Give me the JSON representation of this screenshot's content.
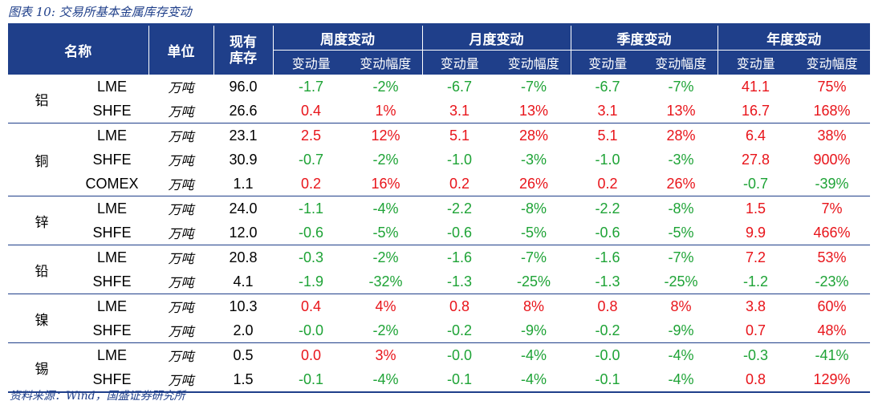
{
  "caption": "图表 10:  交易所基本金属库存变动",
  "source": "资料来源：Wind，国盛证券研究所",
  "colors": {
    "header_bg": "#1f3f8a",
    "positive": "#e8141a",
    "negative": "#1ea336"
  },
  "header": {
    "name": "名称",
    "unit": "单位",
    "stock_line1": "现有",
    "stock_line2": "库存",
    "groups": [
      "周度变动",
      "月度变动",
      "季度变动",
      "年度变动"
    ],
    "sub_change": "变动量",
    "sub_pct": "变动幅度"
  },
  "groups": [
    {
      "metal": "铝",
      "rows": [
        {
          "exchange": "LME",
          "unit": "万吨",
          "stock": "96.0",
          "cells": [
            "-1.7",
            "-2%",
            "-6.7",
            "-7%",
            "-6.7",
            "-7%",
            "41.1",
            "75%"
          ]
        },
        {
          "exchange": "SHFE",
          "unit": "万吨",
          "stock": "26.6",
          "cells": [
            "0.4",
            "1%",
            "3.1",
            "13%",
            "3.1",
            "13%",
            "16.7",
            "168%"
          ]
        }
      ]
    },
    {
      "metal": "铜",
      "rows": [
        {
          "exchange": "LME",
          "unit": "万吨",
          "stock": "23.1",
          "cells": [
            "2.5",
            "12%",
            "5.1",
            "28%",
            "5.1",
            "28%",
            "6.4",
            "38%"
          ]
        },
        {
          "exchange": "SHFE",
          "unit": "万吨",
          "stock": "30.9",
          "cells": [
            "-0.7",
            "-2%",
            "-1.0",
            "-3%",
            "-1.0",
            "-3%",
            "27.8",
            "900%"
          ]
        },
        {
          "exchange": "COMEX",
          "unit": "万吨",
          "stock": "1.1",
          "cells": [
            "0.2",
            "16%",
            "0.2",
            "26%",
            "0.2",
            "26%",
            "-0.7",
            "-39%"
          ]
        }
      ]
    },
    {
      "metal": "锌",
      "rows": [
        {
          "exchange": "LME",
          "unit": "万吨",
          "stock": "24.0",
          "cells": [
            "-1.1",
            "-4%",
            "-2.2",
            "-8%",
            "-2.2",
            "-8%",
            "1.5",
            "7%"
          ]
        },
        {
          "exchange": "SHFE",
          "unit": "万吨",
          "stock": "12.0",
          "cells": [
            "-0.6",
            "-5%",
            "-0.6",
            "-5%",
            "-0.6",
            "-5%",
            "9.9",
            "466%"
          ]
        }
      ]
    },
    {
      "metal": "铅",
      "rows": [
        {
          "exchange": "LME",
          "unit": "万吨",
          "stock": "20.8",
          "cells": [
            "-0.3",
            "-2%",
            "-1.6",
            "-7%",
            "-1.6",
            "-7%",
            "7.2",
            "53%"
          ]
        },
        {
          "exchange": "SHFE",
          "unit": "万吨",
          "stock": "4.1",
          "cells": [
            "-1.9",
            "-32%",
            "-1.3",
            "-25%",
            "-1.3",
            "-25%",
            "-1.2",
            "-23%"
          ]
        }
      ]
    },
    {
      "metal": "镍",
      "rows": [
        {
          "exchange": "LME",
          "unit": "万吨",
          "stock": "10.3",
          "cells": [
            "0.4",
            "4%",
            "0.8",
            "8%",
            "0.8",
            "8%",
            "3.8",
            "60%"
          ]
        },
        {
          "exchange": "SHFE",
          "unit": "万吨",
          "stock": "2.0",
          "cells": [
            "-0.0",
            "-2%",
            "-0.2",
            "-9%",
            "-0.2",
            "-9%",
            "0.7",
            "48%"
          ]
        }
      ]
    },
    {
      "metal": "锡",
      "rows": [
        {
          "exchange": "LME",
          "unit": "万吨",
          "stock": "0.5",
          "cells": [
            "0.0",
            "3%",
            "-0.0",
            "-4%",
            "-0.0",
            "-4%",
            "-0.3",
            "-41%"
          ]
        },
        {
          "exchange": "SHFE",
          "unit": "万吨",
          "stock": "1.5",
          "cells": [
            "-0.1",
            "-4%",
            "-0.1",
            "-4%",
            "-0.1",
            "-4%",
            "0.8",
            "129%"
          ]
        }
      ]
    }
  ]
}
